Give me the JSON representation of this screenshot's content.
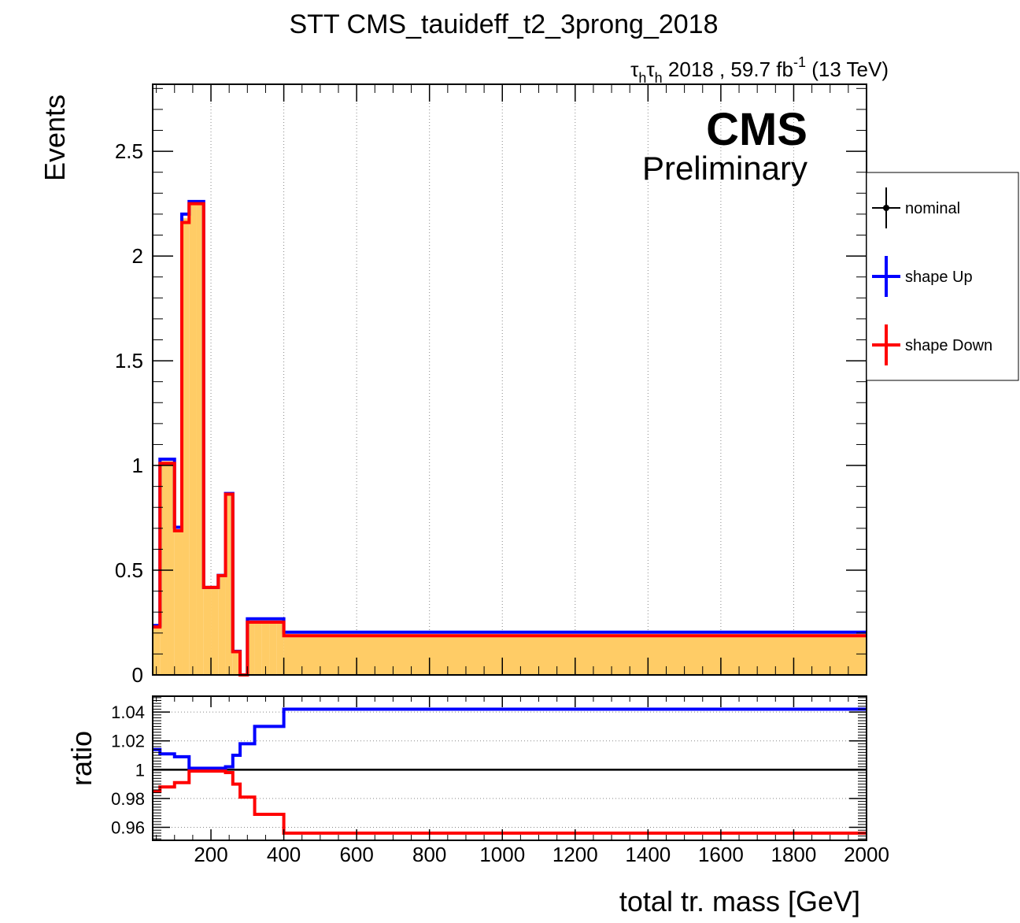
{
  "chart_data": {
    "type": "histogram",
    "title": "STT CMS_tauideff_t2_3prong_2018",
    "lumi_label": {
      "channel_base": "τ",
      "channel_sub": "h",
      "text": "2018 , 59.7 fb",
      "superscript": "-1",
      "energy": "(13 TeV)"
    },
    "cms_label": "CMS",
    "cms_sublabel": "Preliminary",
    "xlabel": "total tr. mass [GeV]",
    "ylabel": "Events",
    "ratio_ylabel": "ratio",
    "xlim": [
      40,
      2000
    ],
    "ylim": [
      0,
      2.82
    ],
    "ratio_ylim": [
      0.951,
      1.051
    ],
    "x_ticks": [
      200,
      400,
      600,
      800,
      1000,
      1200,
      1400,
      1600,
      1800,
      2000
    ],
    "y_ticks": [
      0,
      0.5,
      1,
      1.5,
      2,
      2.5
    ],
    "y_tick_labels": [
      "0",
      "0.5",
      "1",
      "1.5",
      "2",
      "2.5"
    ],
    "ratio_ticks": [
      0.96,
      0.98,
      1,
      1.02,
      1.04
    ],
    "ratio_tick_labels": [
      "0.96",
      "0.98",
      "1",
      "1.02",
      "1.04"
    ],
    "grid": "vertical",
    "legend_position": "right-outside",
    "bin_edges": [
      40,
      60,
      80,
      100,
      120,
      140,
      160,
      180,
      200,
      220,
      240,
      260,
      280,
      300,
      320,
      340,
      360,
      380,
      400,
      2000
    ],
    "series": [
      {
        "name": "nominal",
        "color": "#ffcc66",
        "values": [
          0.233,
          1.02,
          1.02,
          0.695,
          2.18,
          2.25,
          2.25,
          0.418,
          0.418,
          0.475,
          0.865,
          0.112,
          0.0,
          0.26,
          0.26,
          0.26,
          0.26,
          0.26,
          0.196
        ]
      },
      {
        "name": "shape Up",
        "color": "#0000ff",
        "values": [
          0.236,
          1.03,
          1.03,
          0.705,
          2.2,
          2.26,
          2.26,
          0.418,
          0.418,
          0.475,
          0.866,
          0.113,
          0.0,
          0.268,
          0.268,
          0.268,
          0.268,
          0.268,
          0.204
        ]
      },
      {
        "name": "shape Down",
        "color": "#ff0000",
        "values": [
          0.229,
          1.01,
          1.01,
          0.688,
          2.16,
          2.25,
          2.25,
          0.418,
          0.418,
          0.474,
          0.863,
          0.111,
          0.0,
          0.252,
          0.252,
          0.252,
          0.252,
          0.252,
          0.187
        ]
      }
    ],
    "ratio_edges": [
      40,
      60,
      80,
      100,
      120,
      140,
      160,
      180,
      200,
      220,
      240,
      260,
      280,
      300,
      320,
      340,
      360,
      380,
      400,
      2000
    ],
    "ratio_up": [
      1.014,
      1.011,
      1.011,
      1.009,
      1.009,
      1.001,
      1.001,
      1.001,
      1.001,
      1.001,
      1.002,
      1.01,
      1.018,
      1.018,
      1.03,
      1.03,
      1.03,
      1.03,
      1.042
    ],
    "ratio_down": [
      0.985,
      0.988,
      0.988,
      0.991,
      0.991,
      0.999,
      0.999,
      0.999,
      0.999,
      0.999,
      0.998,
      0.99,
      0.981,
      0.981,
      0.969,
      0.969,
      0.969,
      0.969,
      0.956
    ],
    "legend": [
      {
        "label": "nominal",
        "color": "#000000",
        "marker": true
      },
      {
        "label": "shape Up",
        "color": "#0000ff",
        "marker": false
      },
      {
        "label": "shape Down",
        "color": "#ff0000",
        "marker": false
      }
    ]
  }
}
